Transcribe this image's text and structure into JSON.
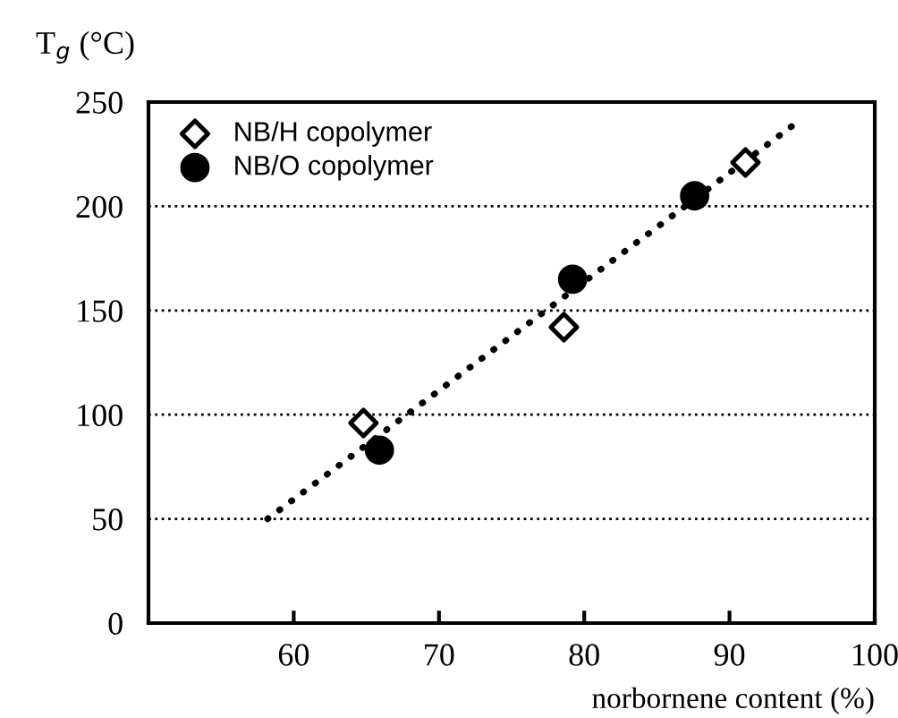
{
  "chart_data": {
    "type": "scatter",
    "xlabel": "norbornene content (%)",
    "ylabel": "T$_{g}$ (°C)",
    "xlim": [
      50,
      100
    ],
    "xticks": [
      60,
      70,
      80,
      90,
      100
    ],
    "ylim": [
      0,
      250
    ],
    "yticks": [
      0,
      50,
      100,
      150,
      200,
      250
    ],
    "grid": "y",
    "legend": "top left",
    "series": [
      {
        "name": "NB/H copolymer",
        "color": "#000000",
        "marker": "diamond",
        "x": [
          64.8,
          78.6,
          91.1
        ],
        "values": [
          96,
          142,
          221
        ]
      },
      {
        "name": "NB/O copolymer",
        "color": "#000000",
        "marker": "circle",
        "x": [
          65.9,
          79.2,
          87.6
        ],
        "values": [
          83,
          165,
          205
        ]
      },
      {
        "type": "line",
        "color": "#000000",
        "line_style": "dotted",
        "marker": "none",
        "x": [
          58.2,
          94.6
        ],
        "values": [
          50,
          240
        ]
      }
    ]
  }
}
